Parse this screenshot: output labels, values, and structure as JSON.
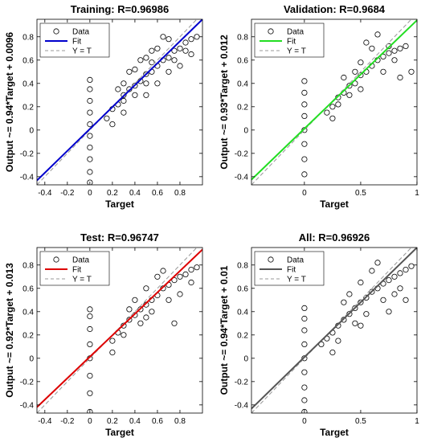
{
  "figure": {
    "background": "#ffffff"
  },
  "chart_data": [
    {
      "type": "scatter",
      "id": "training",
      "title": "Training: R=0.96986",
      "xlabel": "Target",
      "ylabel": "Output ~= 0.94*Target + 0.0096",
      "xlim": [
        -0.47,
        1.0
      ],
      "ylim": [
        -0.47,
        0.95
      ],
      "xticks": [
        -0.4,
        -0.2,
        0,
        0.2,
        0.4,
        0.6,
        0.8
      ],
      "xtick_labels": [
        "-0.4",
        "-0.2",
        "0",
        "0.2",
        "0.4",
        "0.6",
        "0.8"
      ],
      "yticks": [
        -0.4,
        -0.2,
        0,
        0.2,
        0.4,
        0.6,
        0.8
      ],
      "ytick_labels": [
        "-0.4",
        "-0.2",
        "0",
        "0.2",
        "0.4",
        "0.6",
        "0.8"
      ],
      "fit": {
        "slope": 0.94,
        "intercept": 0.0096,
        "color": "#0000cc"
      },
      "identity_color": "#999999",
      "legend": {
        "position": "top-left",
        "entries": [
          "Data",
          "Fit",
          "Y = T"
        ]
      },
      "grid": false,
      "points": [
        [
          0.2,
          0.18
        ],
        [
          0.25,
          0.22
        ],
        [
          0.3,
          0.25
        ],
        [
          0.3,
          0.3
        ],
        [
          0.35,
          0.35
        ],
        [
          0.4,
          0.38
        ],
        [
          0.45,
          0.42
        ],
        [
          0.5,
          0.48
        ],
        [
          0.55,
          0.5
        ],
        [
          0.6,
          0.55
        ],
        [
          0.65,
          0.6
        ],
        [
          0.7,
          0.62
        ],
        [
          0.75,
          0.68
        ],
        [
          0.8,
          0.7
        ],
        [
          0.85,
          0.75
        ],
        [
          0.9,
          0.78
        ],
        [
          0.95,
          0.8
        ],
        [
          0.2,
          0.05
        ],
        [
          0.3,
          0.15
        ],
        [
          0.4,
          0.3
        ],
        [
          0.5,
          0.62
        ],
        [
          0.6,
          0.7
        ],
        [
          0.7,
          0.5
        ],
        [
          0.5,
          0.3
        ],
        [
          0.35,
          0.5
        ],
        [
          0.45,
          0.6
        ],
        [
          0.55,
          0.68
        ],
        [
          0.6,
          0.4
        ],
        [
          0.8,
          0.55
        ],
        [
          0.9,
          0.65
        ],
        [
          0.25,
          0.35
        ],
        [
          0.15,
          0.1
        ],
        [
          0.7,
          0.78
        ],
        [
          0.65,
          0.8
        ],
        [
          0.4,
          0.52
        ],
        [
          0.3,
          0.4
        ],
        [
          0.5,
          0.4
        ],
        [
          0.55,
          0.58
        ],
        [
          0.75,
          0.6
        ],
        [
          0.85,
          0.68
        ],
        [
          0,
          -0.45
        ],
        [
          0,
          -0.36
        ],
        [
          0,
          -0.25
        ],
        [
          0,
          -0.15
        ],
        [
          0,
          -0.05
        ],
        [
          0,
          0.05
        ],
        [
          0,
          0.15
        ],
        [
          0,
          0.25
        ],
        [
          0,
          0.35
        ],
        [
          0,
          0.43
        ]
      ]
    },
    {
      "type": "scatter",
      "id": "validation",
      "title": "Validation: R=0.9684",
      "xlabel": "Target",
      "ylabel": "Output ~= 0.93*Target + 0.012",
      "xlim": [
        -0.47,
        1.0
      ],
      "ylim": [
        -0.47,
        0.95
      ],
      "xticks": [
        0,
        0.5,
        1
      ],
      "xtick_labels": [
        "0",
        "0.5",
        "1"
      ],
      "yticks": [
        -0.4,
        -0.2,
        0,
        0.2,
        0.4,
        0.6,
        0.8
      ],
      "ytick_labels": [
        "-0.4",
        "-0.2",
        "0",
        "0.2",
        "0.4",
        "0.6",
        "0.8"
      ],
      "fit": {
        "slope": 0.93,
        "intercept": 0.012,
        "color": "#22dd22"
      },
      "identity_color": "#999999",
      "legend": {
        "position": "top-left",
        "entries": [
          "Data",
          "Fit",
          "Y = T"
        ]
      },
      "grid": false,
      "points": [
        [
          0.2,
          0.15
        ],
        [
          0.25,
          0.2
        ],
        [
          0.3,
          0.28
        ],
        [
          0.35,
          0.32
        ],
        [
          0.4,
          0.38
        ],
        [
          0.45,
          0.4
        ],
        [
          0.5,
          0.47
        ],
        [
          0.55,
          0.5
        ],
        [
          0.6,
          0.55
        ],
        [
          0.65,
          0.6
        ],
        [
          0.7,
          0.63
        ],
        [
          0.75,
          0.66
        ],
        [
          0.8,
          0.68
        ],
        [
          0.85,
          0.7
        ],
        [
          0.9,
          0.72
        ],
        [
          0.95,
          0.5
        ],
        [
          0.3,
          0.22
        ],
        [
          0.4,
          0.3
        ],
        [
          0.5,
          0.58
        ],
        [
          0.6,
          0.7
        ],
        [
          0.55,
          0.75
        ],
        [
          0.45,
          0.5
        ],
        [
          0.35,
          0.45
        ],
        [
          0.7,
          0.5
        ],
        [
          0.8,
          0.6
        ],
        [
          0.25,
          0.1
        ],
        [
          0.65,
          0.82
        ],
        [
          0.85,
          0.45
        ],
        [
          0.5,
          0.35
        ],
        [
          0.75,
          0.72
        ],
        [
          0,
          -0.38
        ],
        [
          0,
          -0.25
        ],
        [
          0,
          -0.12
        ],
        [
          0,
          0
        ],
        [
          0,
          0.12
        ],
        [
          0,
          0.22
        ],
        [
          0,
          0.32
        ],
        [
          0,
          0.42
        ]
      ]
    },
    {
      "type": "scatter",
      "id": "test",
      "title": "Test: R=0.96747",
      "xlabel": "Target",
      "ylabel": "Output ~= 0.92*Target + 0.013",
      "xlim": [
        -0.47,
        1.0
      ],
      "ylim": [
        -0.47,
        0.95
      ],
      "xticks": [
        -0.4,
        -0.2,
        0,
        0.2,
        0.4,
        0.6,
        0.8
      ],
      "xtick_labels": [
        "-0.4",
        "-0.2",
        "0",
        "0.2",
        "0.4",
        "0.6",
        "0.8"
      ],
      "yticks": [
        -0.4,
        -0.2,
        0,
        0.2,
        0.4,
        0.6,
        0.8
      ],
      "ytick_labels": [
        "-0.4",
        "-0.2",
        "0",
        "0.2",
        "0.4",
        "0.6",
        "0.8"
      ],
      "fit": {
        "slope": 0.92,
        "intercept": 0.013,
        "color": "#dd0000"
      },
      "identity_color": "#999999",
      "legend": {
        "position": "top-left",
        "entries": [
          "Data",
          "Fit",
          "Y = T"
        ]
      },
      "grid": false,
      "points": [
        [
          0.2,
          0.15
        ],
        [
          0.25,
          0.22
        ],
        [
          0.3,
          0.28
        ],
        [
          0.35,
          0.33
        ],
        [
          0.4,
          0.37
        ],
        [
          0.45,
          0.42
        ],
        [
          0.5,
          0.46
        ],
        [
          0.55,
          0.5
        ],
        [
          0.6,
          0.54
        ],
        [
          0.65,
          0.6
        ],
        [
          0.7,
          0.63
        ],
        [
          0.75,
          0.67
        ],
        [
          0.8,
          0.7
        ],
        [
          0.85,
          0.72
        ],
        [
          0.9,
          0.76
        ],
        [
          0.95,
          0.78
        ],
        [
          0.3,
          0.2
        ],
        [
          0.4,
          0.5
        ],
        [
          0.5,
          0.6
        ],
        [
          0.6,
          0.7
        ],
        [
          0.55,
          0.4
        ],
        [
          0.7,
          0.5
        ],
        [
          0.8,
          0.55
        ],
        [
          0.45,
          0.3
        ],
        [
          0.35,
          0.42
        ],
        [
          0.65,
          0.75
        ],
        [
          0.75,
          0.3
        ],
        [
          0.5,
          0.35
        ],
        [
          0.2,
          0.05
        ],
        [
          0.9,
          0.65
        ],
        [
          0,
          -0.46
        ],
        [
          0,
          -0.3
        ],
        [
          0,
          -0.15
        ],
        [
          0,
          0
        ],
        [
          0,
          0.12
        ],
        [
          0,
          0.25
        ],
        [
          0,
          0.36
        ],
        [
          0,
          0.42
        ]
      ]
    },
    {
      "type": "scatter",
      "id": "all",
      "title": "All: R=0.96926",
      "xlabel": "Target",
      "ylabel": "Output ~= 0.94*Target + 0.01",
      "xlim": [
        -0.47,
        1.0
      ],
      "ylim": [
        -0.47,
        0.95
      ],
      "xticks": [
        0,
        0.5,
        1
      ],
      "xtick_labels": [
        "0",
        "0.5",
        "1"
      ],
      "yticks": [
        -0.4,
        -0.2,
        0,
        0.2,
        0.4,
        0.6,
        0.8
      ],
      "ytick_labels": [
        "-0.4",
        "-0.2",
        "0",
        "0.2",
        "0.4",
        "0.6",
        "0.8"
      ],
      "fit": {
        "slope": 0.94,
        "intercept": 0.01,
        "color": "#555555"
      },
      "identity_color": "#999999",
      "legend": {
        "position": "top-left",
        "entries": [
          "Data",
          "Fit",
          "Y = T"
        ]
      },
      "grid": false,
      "points": [
        [
          0.15,
          0.12
        ],
        [
          0.2,
          0.17
        ],
        [
          0.25,
          0.22
        ],
        [
          0.3,
          0.28
        ],
        [
          0.35,
          0.33
        ],
        [
          0.4,
          0.38
        ],
        [
          0.45,
          0.43
        ],
        [
          0.5,
          0.48
        ],
        [
          0.55,
          0.52
        ],
        [
          0.6,
          0.57
        ],
        [
          0.65,
          0.6
        ],
        [
          0.7,
          0.64
        ],
        [
          0.75,
          0.67
        ],
        [
          0.8,
          0.7
        ],
        [
          0.85,
          0.73
        ],
        [
          0.9,
          0.76
        ],
        [
          0.95,
          0.79
        ],
        [
          0.3,
          0.15
        ],
        [
          0.4,
          0.55
        ],
        [
          0.5,
          0.65
        ],
        [
          0.6,
          0.75
        ],
        [
          0.55,
          0.38
        ],
        [
          0.7,
          0.5
        ],
        [
          0.8,
          0.55
        ],
        [
          0.45,
          0.3
        ],
        [
          0.35,
          0.48
        ],
        [
          0.65,
          0.82
        ],
        [
          0.75,
          0.4
        ],
        [
          0.9,
          0.5
        ],
        [
          0.25,
          0.05
        ],
        [
          0.85,
          0.6
        ],
        [
          0.5,
          0.28
        ],
        [
          0,
          -0.46
        ],
        [
          0,
          -0.36
        ],
        [
          0,
          -0.25
        ],
        [
          0,
          -0.12
        ],
        [
          0,
          0
        ],
        [
          0,
          0.12
        ],
        [
          0,
          0.24
        ],
        [
          0,
          0.34
        ],
        [
          0,
          0.43
        ]
      ]
    }
  ]
}
